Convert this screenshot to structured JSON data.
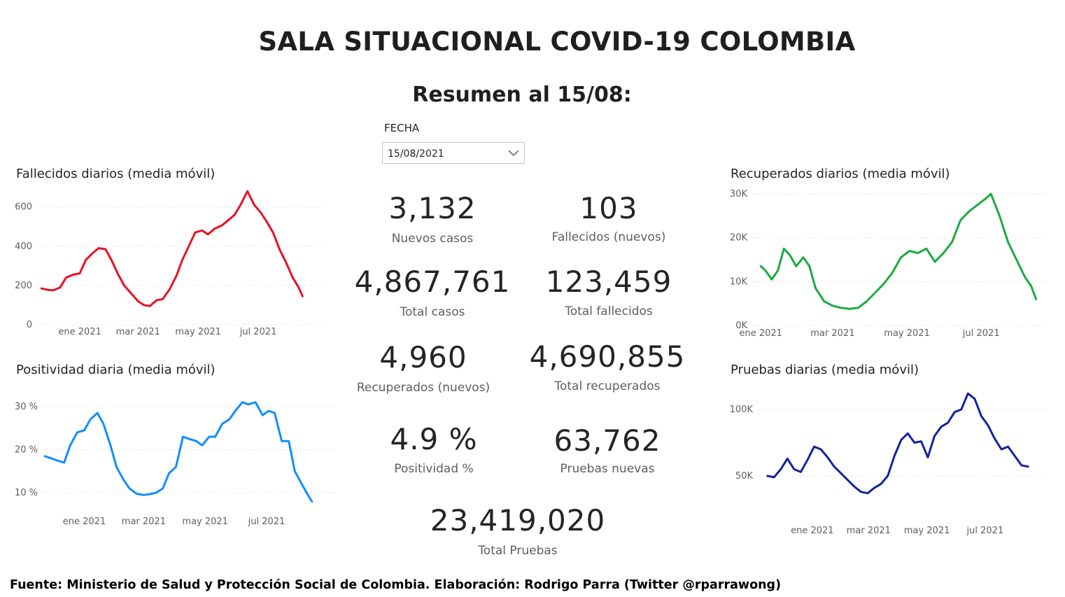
{
  "header": {
    "title": "SALA SITUACIONAL COVID-19 COLOMBIA",
    "subtitle": "Resumen al 15/08:"
  },
  "slicer": {
    "label": "FECHA",
    "value": "15/08/2021",
    "icon": "chevron-down-icon"
  },
  "kpis": {
    "nuevos_casos": {
      "value": "3,132",
      "label": "Nuevos casos"
    },
    "fallecidos_nuevos": {
      "value": "103",
      "label": "Fallecidos (nuevos)"
    },
    "total_casos": {
      "value": "4,867,761",
      "label": "Total casos"
    },
    "total_fallecidos": {
      "value": "123,459",
      "label": "Total fallecidos"
    },
    "recuperados_nuevos": {
      "value": "4,960",
      "label": "Recuperados (nuevos)"
    },
    "total_recuperados": {
      "value": "4,690,855",
      "label": "Total recuperados"
    },
    "positividad": {
      "value": "4.9 %",
      "label": "Positividad %"
    },
    "pruebas_nuevas": {
      "value": "63,762",
      "label": "Pruebas nuevas"
    },
    "total_pruebas": {
      "value": "23,419,020",
      "label": "Total Pruebas"
    }
  },
  "footer": {
    "text": "Fuente: Ministerio de Salud y Protección Social de Colombia. Elaboración: Rodrigo Parra (Twitter @rparrawong)"
  },
  "chart_data": [
    {
      "id": "fallecidos",
      "type": "line",
      "title": "Fallecidos diarios (media móvil)",
      "color": "#e81123",
      "x_ticks": [
        {
          "date": "2021-01-01",
          "label": "ene 2021"
        },
        {
          "date": "2021-03-01",
          "label": "mar 2021"
        },
        {
          "date": "2021-05-01",
          "label": "may 2021"
        },
        {
          "date": "2021-07-01",
          "label": "jul 2021"
        }
      ],
      "y_ticks": [
        0,
        200,
        400,
        600
      ],
      "y_tick_labels": [
        "0",
        "200",
        "400",
        "600"
      ],
      "xlim": [
        "2020-11-20",
        "2021-09-05"
      ],
      "ylim": [
        0,
        720
      ],
      "grid": true,
      "x": [
        "2020-11-23",
        "2020-11-29",
        "2020-12-05",
        "2020-12-12",
        "2020-12-18",
        "2020-12-25",
        "2021-01-01",
        "2021-01-07",
        "2021-01-14",
        "2021-01-20",
        "2021-01-27",
        "2021-02-02",
        "2021-02-09",
        "2021-02-15",
        "2021-02-22",
        "2021-03-01",
        "2021-03-07",
        "2021-03-13",
        "2021-03-20",
        "2021-03-26",
        "2021-04-02",
        "2021-04-09",
        "2021-04-15",
        "2021-04-22",
        "2021-04-28",
        "2021-05-05",
        "2021-05-11",
        "2021-05-18",
        "2021-05-25",
        "2021-05-31",
        "2021-06-07",
        "2021-06-13",
        "2021-06-20",
        "2021-06-27",
        "2021-07-03",
        "2021-07-09",
        "2021-07-16",
        "2021-07-23",
        "2021-07-29",
        "2021-08-05",
        "2021-08-11",
        "2021-08-15"
      ],
      "values": [
        185,
        178,
        175,
        190,
        240,
        255,
        262,
        330,
        365,
        390,
        385,
        330,
        255,
        200,
        160,
        120,
        100,
        95,
        125,
        130,
        180,
        250,
        330,
        405,
        470,
        480,
        460,
        490,
        505,
        530,
        560,
        610,
        680,
        610,
        575,
        530,
        470,
        380,
        320,
        240,
        190,
        145
      ]
    },
    {
      "id": "positividad",
      "type": "line",
      "title": "Positividad diaria (media móvil)",
      "color": "#118dff",
      "x_ticks": [
        {
          "date": "2021-01-01",
          "label": "ene 2021"
        },
        {
          "date": "2021-03-01",
          "label": "mar 2021"
        },
        {
          "date": "2021-05-01",
          "label": "may 2021"
        },
        {
          "date": "2021-07-01",
          "label": "jul 2021"
        }
      ],
      "y_ticks": [
        10,
        20,
        30
      ],
      "y_tick_labels": [
        "10 %",
        "20 %",
        "30 %"
      ],
      "xlim": [
        "2020-11-20",
        "2021-09-05"
      ],
      "ylim": [
        5,
        35
      ],
      "grid": true,
      "x": [
        "2020-11-23",
        "2020-11-29",
        "2020-12-05",
        "2020-12-12",
        "2020-12-18",
        "2020-12-25",
        "2021-01-01",
        "2021-01-07",
        "2021-01-14",
        "2021-01-20",
        "2021-01-27",
        "2021-02-02",
        "2021-02-09",
        "2021-02-15",
        "2021-02-22",
        "2021-03-01",
        "2021-03-07",
        "2021-03-13",
        "2021-03-20",
        "2021-03-26",
        "2021-04-02",
        "2021-04-09",
        "2021-04-15",
        "2021-04-22",
        "2021-04-28",
        "2021-05-05",
        "2021-05-11",
        "2021-05-18",
        "2021-05-25",
        "2021-05-31",
        "2021-06-07",
        "2021-06-13",
        "2021-06-20",
        "2021-06-27",
        "2021-07-03",
        "2021-07-09",
        "2021-07-16",
        "2021-07-23",
        "2021-07-29",
        "2021-08-05",
        "2021-08-11",
        "2021-08-15"
      ],
      "values": [
        18.5,
        18,
        17.5,
        17,
        21,
        24,
        24.5,
        27,
        28.5,
        26,
        21,
        16,
        13,
        11,
        9.8,
        9.5,
        9.7,
        10,
        11,
        14.5,
        16,
        23,
        22.5,
        22,
        21,
        23,
        23,
        26,
        27,
        29,
        31,
        30.5,
        31,
        28,
        29,
        28.5,
        22,
        22,
        15,
        12,
        9.5,
        8
      ]
    },
    {
      "id": "recuperados",
      "type": "line",
      "title": "Recuperados diarios (media móvil)",
      "color": "#1aab40",
      "x_ticks": [
        {
          "date": "2021-01-01",
          "label": "ene 2021"
        },
        {
          "date": "2021-03-01",
          "label": "mar 2021"
        },
        {
          "date": "2021-05-01",
          "label": "may 2021"
        },
        {
          "date": "2021-07-01",
          "label": "jul 2021"
        }
      ],
      "y_ticks": [
        0,
        10000,
        20000,
        30000
      ],
      "y_tick_labels": [
        "0K",
        "10K",
        "20K",
        "30K"
      ],
      "xlim": [
        "2020-12-25",
        "2021-08-25"
      ],
      "ylim": [
        0,
        30000
      ],
      "grid": true,
      "x": [
        "2021-01-01",
        "2021-01-05",
        "2021-01-10",
        "2021-01-15",
        "2021-01-20",
        "2021-01-25",
        "2021-01-30",
        "2021-02-05",
        "2021-02-10",
        "2021-02-15",
        "2021-02-22",
        "2021-03-01",
        "2021-03-08",
        "2021-03-15",
        "2021-03-22",
        "2021-03-29",
        "2021-04-05",
        "2021-04-12",
        "2021-04-19",
        "2021-04-26",
        "2021-05-03",
        "2021-05-10",
        "2021-05-17",
        "2021-05-24",
        "2021-05-31",
        "2021-06-07",
        "2021-06-14",
        "2021-06-21",
        "2021-06-28",
        "2021-07-05",
        "2021-07-09",
        "2021-07-16",
        "2021-07-23",
        "2021-07-30",
        "2021-08-06",
        "2021-08-11",
        "2021-08-15"
      ],
      "values": [
        13500,
        12500,
        10500,
        12500,
        17500,
        16000,
        13500,
        15500,
        13500,
        8500,
        5500,
        4500,
        4000,
        3800,
        4000,
        5500,
        7500,
        9500,
        12000,
        15500,
        17000,
        16500,
        17500,
        14500,
        16500,
        19000,
        24000,
        26000,
        27500,
        29000,
        30000,
        25000,
        19000,
        15000,
        11000,
        9000,
        6000
      ]
    },
    {
      "id": "pruebas",
      "type": "line",
      "title": "Pruebas diarias (media móvil)",
      "color": "#12239e",
      "x_ticks": [
        {
          "date": "2021-01-01",
          "label": "ene 2021"
        },
        {
          "date": "2021-03-01",
          "label": "mar 2021"
        },
        {
          "date": "2021-05-01",
          "label": "may 2021"
        },
        {
          "date": "2021-07-01",
          "label": "jul 2021"
        }
      ],
      "y_ticks": [
        50000,
        100000
      ],
      "y_tick_labels": [
        "50K",
        "100K"
      ],
      "xlim": [
        "2020-11-05",
        "2021-09-05"
      ],
      "ylim": [
        20000,
        120000
      ],
      "grid": true,
      "x": [
        "2020-11-15",
        "2020-11-22",
        "2020-11-29",
        "2020-12-06",
        "2020-12-13",
        "2020-12-20",
        "2020-12-27",
        "2021-01-03",
        "2021-01-10",
        "2021-01-17",
        "2021-01-24",
        "2021-01-31",
        "2021-02-07",
        "2021-02-14",
        "2021-02-21",
        "2021-02-28",
        "2021-03-07",
        "2021-03-14",
        "2021-03-21",
        "2021-03-28",
        "2021-04-04",
        "2021-04-11",
        "2021-04-18",
        "2021-04-25",
        "2021-05-02",
        "2021-05-09",
        "2021-05-16",
        "2021-05-23",
        "2021-05-30",
        "2021-06-06",
        "2021-06-13",
        "2021-06-20",
        "2021-06-27",
        "2021-07-04",
        "2021-07-11",
        "2021-07-18",
        "2021-07-25",
        "2021-08-01",
        "2021-08-08",
        "2021-08-15"
      ],
      "values": [
        50000,
        49000,
        55000,
        63000,
        55000,
        53000,
        62000,
        72000,
        70000,
        64000,
        57000,
        52000,
        47000,
        42000,
        38000,
        37000,
        41000,
        44000,
        50000,
        65000,
        77000,
        82000,
        75000,
        76000,
        64000,
        80000,
        87000,
        90000,
        98000,
        100000,
        112000,
        108000,
        95000,
        88000,
        78000,
        70000,
        72000,
        65000,
        58000,
        57000
      ]
    }
  ]
}
